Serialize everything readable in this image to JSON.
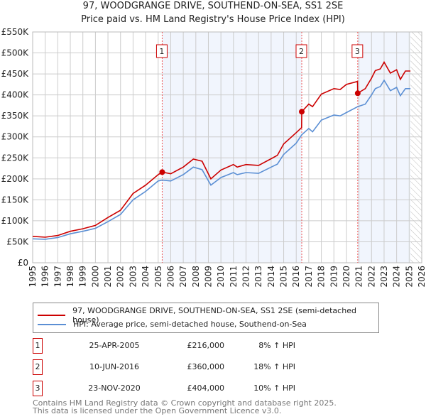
{
  "title": "97, WOODGRANGE DRIVE, SOUTHEND-ON-SEA, SS1 2SE",
  "subtitle": "Price paid vs. HM Land Registry's House Price Index (HPI)",
  "chart_data": {
    "type": "line",
    "xlim": [
      1995,
      2026
    ],
    "ylim": [
      0,
      550000
    ],
    "x_ticks": [
      "1995",
      "1996",
      "1997",
      "1998",
      "1999",
      "2000",
      "2001",
      "2002",
      "2003",
      "2004",
      "2005",
      "2006",
      "2007",
      "2008",
      "2009",
      "2010",
      "2011",
      "2012",
      "2013",
      "2014",
      "2015",
      "2016",
      "2017",
      "2018",
      "2019",
      "2020",
      "2021",
      "2022",
      "2023",
      "2024",
      "2025",
      "2026"
    ],
    "y_ticks": [
      {
        "v": 0,
        "label": "£0"
      },
      {
        "v": 50000,
        "label": "£50K"
      },
      {
        "v": 100000,
        "label": "£100K"
      },
      {
        "v": 150000,
        "label": "£150K"
      },
      {
        "v": 200000,
        "label": "£200K"
      },
      {
        "v": 250000,
        "label": "£250K"
      },
      {
        "v": 300000,
        "label": "£300K"
      },
      {
        "v": 350000,
        "label": "£350K"
      },
      {
        "v": 400000,
        "label": "£400K"
      },
      {
        "v": 450000,
        "label": "£450K"
      },
      {
        "v": 500000,
        "label": "£500K"
      },
      {
        "v": 550000,
        "label": "£550K"
      }
    ],
    "grid": true,
    "shaded_ranges": [
      [
        2005.32,
        2016.44
      ],
      [
        2020.9,
        2025.1
      ]
    ],
    "hatched_from": 2025.1,
    "series": [
      {
        "name": "97, WOODGRANGE DRIVE, SOUTHEND-ON-SEA, SS1 2SE (semi-detached house)",
        "color": "#cc0000",
        "x": [
          1995,
          1996,
          1997,
          1998,
          1999,
          2000,
          2001,
          2002,
          2003,
          2004,
          2005,
          2005.32,
          2006,
          2007,
          2007.8,
          2008.5,
          2009.2,
          2010,
          2011,
          2011.3,
          2012,
          2013,
          2014,
          2014.5,
          2015,
          2016,
          2016.43,
          2016.44,
          2017,
          2017.3,
          2018,
          2019,
          2019.5,
          2020,
          2020.88,
          2020.9,
          2021.5,
          2022,
          2022.3,
          2022.7,
          2023,
          2023.5,
          2024,
          2024.3,
          2024.7,
          2025.1
        ],
        "y": [
          63000,
          61000,
          65000,
          75000,
          81000,
          89000,
          108000,
          125000,
          165000,
          185000,
          210000,
          216000,
          212000,
          228000,
          247000,
          242000,
          200000,
          221000,
          234000,
          228000,
          234000,
          232000,
          248000,
          256000,
          283000,
          310000,
          322000,
          360000,
          378000,
          372000,
          402000,
          415000,
          413000,
          425000,
          432000,
          404000,
          415000,
          440000,
          458000,
          462000,
          478000,
          452000,
          460000,
          437000,
          457000,
          457000
        ]
      },
      {
        "name": "HPI: Average price, semi-detached house, Southend-on-Sea",
        "color": "#5b8fd4",
        "x": [
          1995,
          1996,
          1997,
          1998,
          1999,
          2000,
          2001,
          2002,
          2003,
          2004,
          2005,
          2005.32,
          2006,
          2007,
          2007.8,
          2008.5,
          2009.2,
          2010,
          2011,
          2011.3,
          2012,
          2013,
          2014,
          2014.5,
          2015,
          2016,
          2016.44,
          2017,
          2017.3,
          2018,
          2019,
          2019.5,
          2020,
          2020.9,
          2021.5,
          2022,
          2022.3,
          2022.7,
          2023,
          2023.5,
          2024,
          2024.3,
          2024.7,
          2025.1
        ],
        "y": [
          57000,
          56000,
          60000,
          69000,
          75000,
          82000,
          98000,
          115000,
          150000,
          170000,
          195000,
          197000,
          195000,
          210000,
          228000,
          222000,
          185000,
          203000,
          215000,
          210000,
          215000,
          213000,
          228000,
          235000,
          258000,
          285000,
          305000,
          320000,
          312000,
          340000,
          352000,
          350000,
          358000,
          372000,
          378000,
          400000,
          415000,
          420000,
          435000,
          410000,
          418000,
          398000,
          415000,
          415000
        ]
      }
    ],
    "sales": [
      {
        "label": "1",
        "x": 2005.32,
        "y": 216000,
        "date": "25-APR-2005",
        "price": "£216,000",
        "hpi": "8% ↑ HPI"
      },
      {
        "label": "2",
        "x": 2016.44,
        "y": 360000,
        "date": "10-JUN-2016",
        "price": "£360,000",
        "hpi": "18% ↑ HPI"
      },
      {
        "label": "3",
        "x": 2020.9,
        "y": 404000,
        "date": "23-NOV-2020",
        "price": "£404,000",
        "hpi": "10% ↑ HPI"
      }
    ]
  },
  "legend": {
    "property": "97, WOODGRANGE DRIVE, SOUTHEND-ON-SEA, SS1 2SE (semi-detached house)",
    "hpi": "HPI: Average price, semi-detached house, Southend-on-Sea"
  },
  "footer": {
    "line1": "Contains HM Land Registry data © Crown copyright and database right 2025.",
    "line2": "This data is licensed under the Open Government Licence v3.0."
  }
}
